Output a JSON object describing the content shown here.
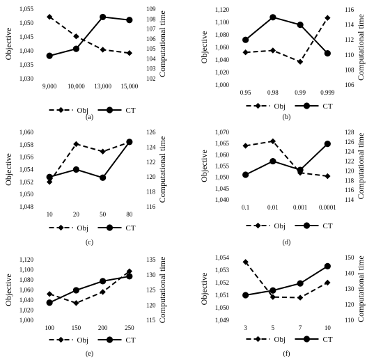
{
  "chart_data": [
    {
      "type": "line",
      "label": "(a)",
      "categories": [
        "9,000",
        "10,000",
        "13,000",
        "15,000"
      ],
      "ylabel": "Objective",
      "y2label": "Computational time",
      "ylim": [
        1030,
        1055
      ],
      "yticks": [
        "1,030",
        "1,035",
        "1,040",
        "1,045",
        "1,050",
        "1,055"
      ],
      "y2lim": [
        102,
        109
      ],
      "y2ticks": [
        "102",
        "103",
        "104",
        "105",
        "106",
        "107",
        "108",
        "109"
      ],
      "series": [
        {
          "name": "Obj",
          "axis": "left",
          "style": "dashed",
          "marker": "diamond",
          "values": [
            1052.2,
            1045.2,
            1040.4,
            1039.2
          ]
        },
        {
          "name": "CT",
          "axis": "right",
          "style": "solid",
          "marker": "circle",
          "values": [
            104.3,
            105.0,
            108.2,
            107.9
          ]
        }
      ],
      "legend_position": "bottom"
    },
    {
      "type": "line",
      "label": "(b)",
      "categories": [
        "0.95",
        "0.98",
        "0.99",
        "0.999"
      ],
      "ylabel": "Objective",
      "y2label": "Computational time",
      "ylim": [
        1000,
        1120
      ],
      "yticks": [
        "1,000",
        "1,020",
        "1,040",
        "1,060",
        "1,080",
        "1,100",
        "1,120"
      ],
      "y2lim": [
        106,
        116
      ],
      "y2ticks": [
        "106",
        "108",
        "110",
        "112",
        "114",
        "116"
      ],
      "series": [
        {
          "name": "Obj",
          "axis": "left",
          "style": "dashed",
          "marker": "diamond",
          "values": [
            1052,
            1055,
            1037,
            1107
          ]
        },
        {
          "name": "CT",
          "axis": "right",
          "style": "solid",
          "marker": "circle",
          "values": [
            112.0,
            115.0,
            114.0,
            110.2
          ]
        }
      ],
      "legend_position": "bottom"
    },
    {
      "type": "line",
      "label": "(c)",
      "categories": [
        "10",
        "20",
        "50",
        "80"
      ],
      "ylabel": "Objective",
      "y2label": "Computational time",
      "ylim": [
        1048,
        1060
      ],
      "yticks": [
        "1,048",
        "1,050",
        "1,052",
        "1,054",
        "1,056",
        "1,058",
        "1,060"
      ],
      "y2lim": [
        116,
        126
      ],
      "y2ticks": [
        "116",
        "118",
        "120",
        "122",
        "124",
        "126"
      ],
      "series": [
        {
          "name": "Obj",
          "axis": "left",
          "style": "dashed",
          "marker": "diamond",
          "values": [
            1052.0,
            1058.1,
            1056.9,
            1058.4
          ]
        },
        {
          "name": "CT",
          "axis": "right",
          "style": "solid",
          "marker": "circle",
          "values": [
            120.0,
            121.0,
            119.9,
            124.7
          ]
        }
      ],
      "legend_position": "bottom"
    },
    {
      "type": "line",
      "label": "(d)",
      "categories": [
        "0.1",
        "0.01",
        "0.001",
        "0.0001"
      ],
      "ylabel": "Objective",
      "y2label": "Computational time",
      "ylim": [
        1040,
        1070
      ],
      "yticks": [
        "1,040",
        "1,045",
        "1,050",
        "1,055",
        "1,060",
        "1,065",
        "1,070"
      ],
      "y2lim": [
        114,
        128
      ],
      "y2ticks": [
        "114",
        "116",
        "118",
        "120",
        "122",
        "124",
        "126",
        "128"
      ],
      "series": [
        {
          "name": "Obj",
          "axis": "left",
          "style": "dashed",
          "marker": "diamond",
          "values": [
            1064,
            1066,
            1052,
            1050.5
          ]
        },
        {
          "name": "CT",
          "axis": "right",
          "style": "solid",
          "marker": "circle",
          "values": [
            119.2,
            122.0,
            120.2,
            125.6
          ]
        }
      ],
      "legend_position": "bottom"
    },
    {
      "type": "line",
      "label": "(e)",
      "categories": [
        "100",
        "150",
        "200",
        "250"
      ],
      "ylabel": "Objective",
      "y2label": "Computational time",
      "ylim": [
        1000,
        1120
      ],
      "yticks": [
        "1,000",
        "1,020",
        "1,040",
        "1,060",
        "1,080",
        "1,100",
        "1,120"
      ],
      "y2lim": [
        115,
        135
      ],
      "y2ticks": [
        "115",
        "120",
        "125",
        "130",
        "135"
      ],
      "series": [
        {
          "name": "Obj",
          "axis": "left",
          "style": "dashed",
          "marker": "diamond",
          "values": [
            1052,
            1034,
            1056,
            1097
          ]
        },
        {
          "name": "CT",
          "axis": "right",
          "style": "solid",
          "marker": "circle",
          "values": [
            120.8,
            124.9,
            127.9,
            129.5
          ]
        }
      ],
      "legend_position": "bottom"
    },
    {
      "type": "line",
      "label": "(f)",
      "categories": [
        "3",
        "5",
        "7",
        "10"
      ],
      "ylabel": "Objective",
      "y2label": "Computational time",
      "ylim": [
        1049,
        1054
      ],
      "yticks": [
        "1,049",
        "1,050",
        "1,051",
        "1,052",
        "1,053",
        "1,054"
      ],
      "y2lim": [
        110,
        150
      ],
      "y2ticks": [
        "110",
        "120",
        "130",
        "140",
        "150"
      ],
      "series": [
        {
          "name": "Obj",
          "axis": "left",
          "style": "dashed",
          "marker": "diamond",
          "values": [
            1053.65,
            1050.85,
            1050.8,
            1052.0
          ]
        },
        {
          "name": "CT",
          "axis": "right",
          "style": "solid",
          "marker": "circle",
          "values": [
            126.0,
            129.0,
            133.5,
            144.5
          ]
        }
      ],
      "legend_position": "bottom"
    }
  ]
}
